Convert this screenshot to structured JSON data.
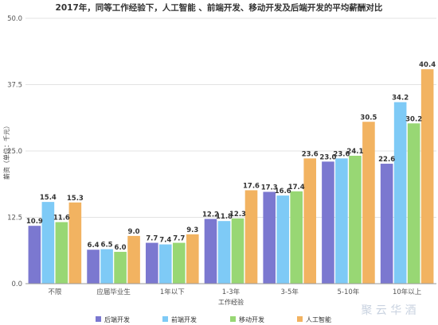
{
  "chart_data": {
    "type": "bar",
    "title": "2017年，同等工作经验下，人工智能 、前端开发、移动开发及后端开发的平均薪酬对比",
    "xlabel": "工作经验",
    "ylabel": "薪资（单位：千元）",
    "ylim": [
      0,
      50
    ],
    "yticks": [
      "0.0",
      "12.5",
      "25.0",
      "37.5",
      "50.0"
    ],
    "grid": true,
    "legend_position": "bottom",
    "categories": [
      "不限",
      "应届毕业生",
      "1年以下",
      "1-3年",
      "3-5年",
      "5-10年",
      "10年以上"
    ],
    "series": [
      {
        "name": "后端开发",
        "color": "#7b78d0",
        "values": [
          10.9,
          6.4,
          7.7,
          12.2,
          17.3,
          23.0,
          22.6
        ]
      },
      {
        "name": "前端开发",
        "color": "#7ecaf6",
        "values": [
          15.4,
          6.5,
          7.4,
          11.8,
          16.6,
          23.6,
          34.2
        ]
      },
      {
        "name": "移动开发",
        "color": "#98d774",
        "values": [
          11.6,
          6.0,
          7.7,
          12.3,
          17.4,
          24.1,
          30.2
        ]
      },
      {
        "name": "人工智能",
        "color": "#f2b361",
        "values": [
          15.3,
          9.0,
          9.3,
          17.6,
          23.6,
          30.5,
          40.4
        ]
      }
    ]
  },
  "watermark": "聚 云 华 酒"
}
